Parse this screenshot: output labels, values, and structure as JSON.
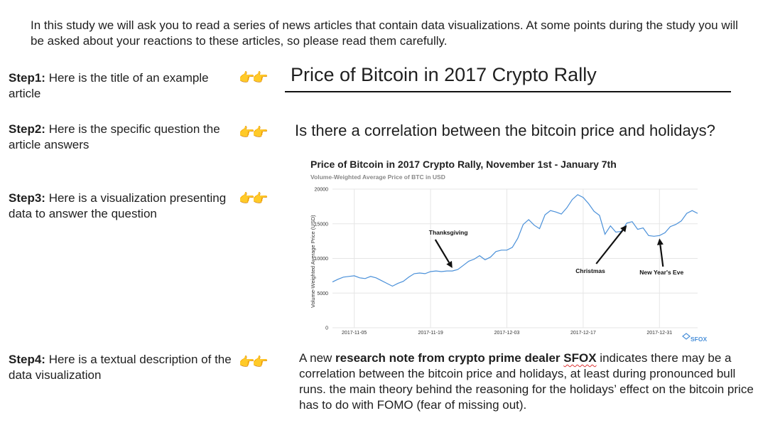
{
  "intro": "In this study we will ask you to read a series of news articles that contain data visualizations. At some points during the study you will be asked about your reactions to these articles, so please read them carefully.",
  "steps": [
    {
      "label": "Step1:",
      "text": " Here is the title of an example article"
    },
    {
      "label": "Step2:",
      "text": " Here is the specific question the article answers"
    },
    {
      "label": "Step3:",
      "text": " Here is a visualization presenting data to answer the question"
    },
    {
      "label": "Step4:",
      "text": " Here is a textual description of the data visualization"
    }
  ],
  "pointer_emoji": "👉👉",
  "article": {
    "title": "Price of Bitcoin in 2017 Crypto Rally",
    "question": "Is there a correlation between the bitcoin price and holidays?",
    "description": {
      "pre": "A new ",
      "bold_1": "research note from crypto prime dealer ",
      "bold_2": "SFOX",
      "post": " indicates there may be a correlation between the bitcoin price and holidays, at least during pronounced bull runs. the main theory behind the reasoning for the holidays’ effect on the bitcoin price has to do with FOMO (fear of missing out)."
    }
  },
  "chart_data": {
    "type": "line",
    "title": "Price of Bitcoin in 2017 Crypto Rally, November 1st - January 7th",
    "subtitle": "Volume-Weighted Average Price of BTC in USD",
    "ylabel": "Volume-Weighted Average Price (USD)",
    "xlabel": "",
    "ylim": [
      0,
      20000
    ],
    "yticks": [
      0,
      5000,
      10000,
      15000,
      20000
    ],
    "xlim": [
      "2017-11-01",
      "2018-01-07"
    ],
    "xticks": [
      "2017-11-05",
      "2017-11-19",
      "2017-12-03",
      "2017-12-17",
      "2017-12-31"
    ],
    "grid": true,
    "series": [
      {
        "color": "#4a90d9",
        "x": [
          "2017-11-01",
          "2017-11-02",
          "2017-11-03",
          "2017-11-04",
          "2017-11-05",
          "2017-11-06",
          "2017-11-07",
          "2017-11-08",
          "2017-11-09",
          "2017-11-10",
          "2017-11-11",
          "2017-11-12",
          "2017-11-13",
          "2017-11-14",
          "2017-11-15",
          "2017-11-16",
          "2017-11-17",
          "2017-11-18",
          "2017-11-19",
          "2017-11-20",
          "2017-11-21",
          "2017-11-22",
          "2017-11-23",
          "2017-11-24",
          "2017-11-25",
          "2017-11-26",
          "2017-11-27",
          "2017-11-28",
          "2017-11-29",
          "2017-11-30",
          "2017-12-01",
          "2017-12-02",
          "2017-12-03",
          "2017-12-04",
          "2017-12-05",
          "2017-12-06",
          "2017-12-07",
          "2017-12-08",
          "2017-12-09",
          "2017-12-10",
          "2017-12-11",
          "2017-12-12",
          "2017-12-13",
          "2017-12-14",
          "2017-12-15",
          "2017-12-16",
          "2017-12-17",
          "2017-12-18",
          "2017-12-19",
          "2017-12-20",
          "2017-12-21",
          "2017-12-22",
          "2017-12-23",
          "2017-12-24",
          "2017-12-25",
          "2017-12-26",
          "2017-12-27",
          "2017-12-28",
          "2017-12-29",
          "2017-12-30",
          "2017-12-31",
          "2018-01-01",
          "2018-01-02",
          "2018-01-03",
          "2018-01-04",
          "2018-01-05",
          "2018-01-06",
          "2018-01-07"
        ],
        "values": [
          6600,
          7000,
          7300,
          7400,
          7500,
          7200,
          7100,
          7400,
          7200,
          6800,
          6400,
          6000,
          6400,
          6700,
          7300,
          7800,
          7900,
          7800,
          8100,
          8200,
          8100,
          8200,
          8200,
          8400,
          9000,
          9600,
          9900,
          10400,
          9800,
          10200,
          11000,
          11200,
          11200,
          11600,
          12900,
          14900,
          15600,
          14800,
          14300,
          16300,
          16900,
          16700,
          16400,
          17300,
          18500,
          19200,
          18800,
          17900,
          16800,
          16200,
          13500,
          14700,
          13800,
          13900,
          15100,
          15300,
          14200,
          14400,
          13300,
          13200,
          13300,
          13700,
          14600,
          14900,
          15400,
          16500,
          16900,
          16500
        ]
      }
    ],
    "annotations": [
      {
        "text": "Thanksgiving",
        "x": "2017-11-23"
      },
      {
        "text": "Christmas",
        "x": "2017-12-25"
      },
      {
        "text": "New Year's Eve",
        "x": "2017-12-31"
      }
    ],
    "source_logo": "SFOX"
  }
}
